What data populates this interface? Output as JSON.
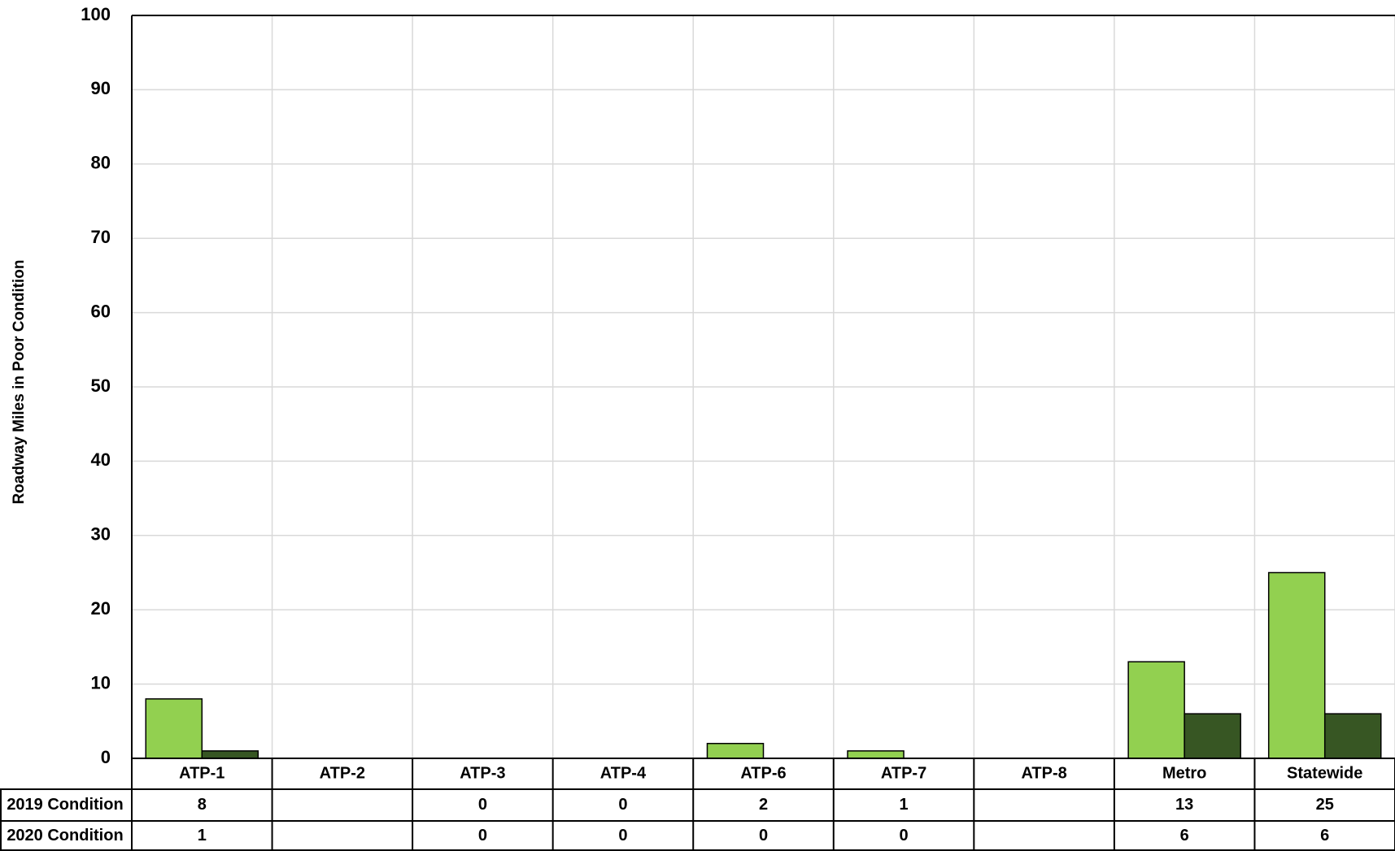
{
  "chart_data": {
    "type": "bar",
    "y_label": "Roadway Miles in Poor Condition",
    "categories": [
      "ATP-1",
      "ATP-2",
      "ATP-3",
      "ATP-4",
      "ATP-6",
      "ATP-7",
      "ATP-8",
      "Metro",
      "Statewide"
    ],
    "series": [
      {
        "name": "2019 Condition",
        "color": "#92d050",
        "values": [
          8,
          null,
          0,
          0,
          2,
          1,
          null,
          13,
          25
        ]
      },
      {
        "name": "2020 Condition",
        "color": "#375623",
        "values": [
          1,
          null,
          0,
          0,
          0,
          0,
          null,
          6,
          6
        ]
      }
    ],
    "ylim": [
      0,
      100
    ],
    "yticks": [
      0,
      10,
      20,
      30,
      40,
      50,
      60,
      70,
      80,
      90,
      100
    ],
    "grid": true
  }
}
